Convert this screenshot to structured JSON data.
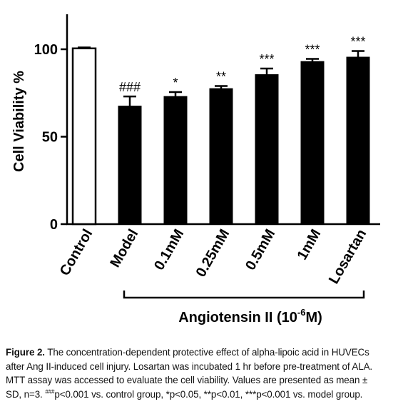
{
  "chart_data": {
    "type": "bar",
    "categories": [
      "Control",
      "Model",
      "0.1mM",
      "0.25mM",
      "0.5mM",
      "1mM",
      "Losartan"
    ],
    "values": [
      100.5,
      67.5,
      73,
      77.5,
      85.5,
      93,
      95.5
    ],
    "errors": [
      0.5,
      5.5,
      2.5,
      1.5,
      3.5,
      1.5,
      3.5
    ],
    "significance": [
      "",
      "###",
      "*",
      "**",
      "***",
      "***",
      "***"
    ],
    "fills": [
      "#ffffff",
      "#000000",
      "#000000",
      "#000000",
      "#000000",
      "#000000",
      "#000000"
    ],
    "ylabel": "Cell Viability %",
    "ylim": [
      0,
      120
    ],
    "yticks": [
      0,
      50,
      100
    ],
    "ytick_labels": [
      "0",
      "50",
      "100"
    ],
    "bracket_label": "Angiotensin II (10",
    "bracket_label_sup": "-6",
    "bracket_label_end": "M)",
    "grid": false,
    "legend": "none"
  },
  "caption": {
    "label": "Figure 2.",
    "line1": " The concentration-dependent protective effect of alpha-lipoic acid in HUVECs",
    "line2": "after Ang II-induced cell injury. Losartan was incubated 1 hr before pre-treatment of ALA.",
    "line3": "MTT assay was accessed to evaluate the cell viability. Values are presented as mean ±",
    "line4_a": "SD, n=3. ",
    "line4_sup": "###",
    "line4_b": "p<0.001 vs. control group, *p<0.05, **p<0.01, ***p<0.001 vs. model group."
  }
}
